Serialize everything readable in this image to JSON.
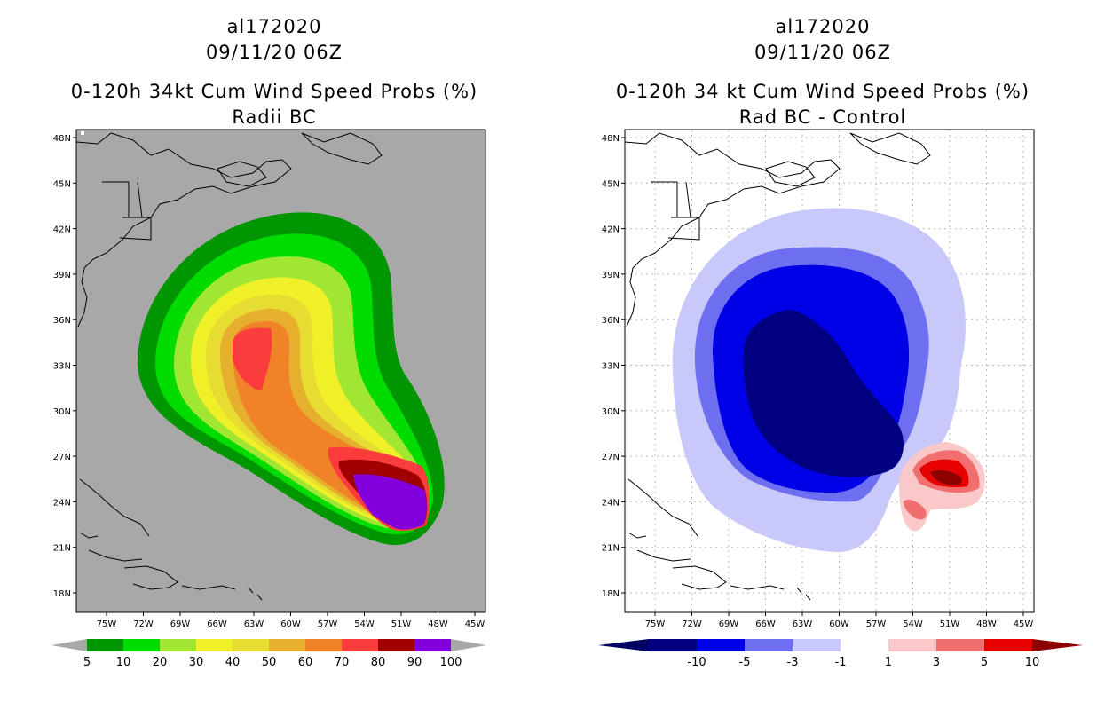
{
  "left": {
    "storm_id": "al172020",
    "datetime": "09/11/20 06Z",
    "product": "0-120h 34kt Cum Wind Speed Probs (%)",
    "subtitle": "Radii BC",
    "colorbar": {
      "labels": [
        "5",
        "10",
        "20",
        "30",
        "40",
        "50",
        "60",
        "70",
        "80",
        "90",
        "100"
      ],
      "colors": [
        "#009600",
        "#00dc00",
        "#a0e632",
        "#f0f028",
        "#e6dc32",
        "#e6af2d",
        "#f08228",
        "#fa3c3c",
        "#a00000",
        "#8200dc"
      ]
    }
  },
  "right": {
    "storm_id": "al172020",
    "datetime": "09/11/20 06Z",
    "product": "0-120h 34 kt Cum Wind Speed Probs (%)",
    "subtitle": "Rad BC - Control",
    "colorbar": {
      "labels": [
        "-10",
        "-5",
        "-3",
        "-1",
        "1",
        "3",
        "5",
        "10"
      ],
      "colors": [
        "#000080",
        "#0000e6",
        "#6e6ef0",
        "#c8c8fa",
        "#ffffff",
        "#fac8c8",
        "#f06e6e",
        "#e60000"
      ],
      "end_low": "#000064",
      "end_high": "#8c0000"
    }
  },
  "map": {
    "lat_labels": [
      "48N",
      "45N",
      "42N",
      "39N",
      "36N",
      "33N",
      "30N",
      "27N",
      "24N",
      "21N",
      "18N"
    ],
    "lon_labels": [
      "75W",
      "72W",
      "69W",
      "66W",
      "63W",
      "60W",
      "57W",
      "54W",
      "51W",
      "48W",
      "45W"
    ]
  }
}
